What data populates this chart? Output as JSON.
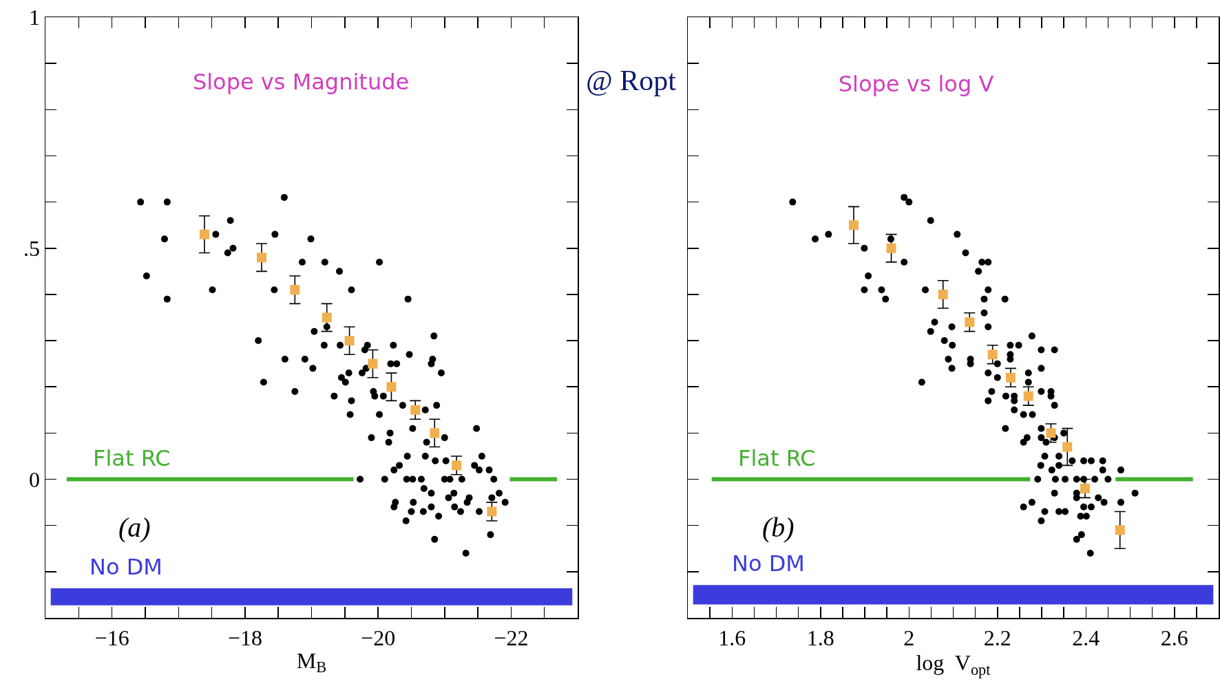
{
  "chart_data": [
    {
      "type": "scatter",
      "title": "Slope vs Magnitude",
      "xlabel": "M$_{B}$",
      "annotations": [
        "(a)",
        "@ Ropt"
      ],
      "xlim": [
        -15,
        -23
      ],
      "xticks": [
        {
          "value": -15.5,
          "label": null
        },
        {
          "value": -16,
          "label": "−16"
        },
        {
          "value": -16.5,
          "label": null
        },
        {
          "value": -17,
          "label": null
        },
        {
          "value": -17.5,
          "label": null
        },
        {
          "value": -18,
          "label": "−18"
        },
        {
          "value": -18.5,
          "label": null
        },
        {
          "value": -19,
          "label": null
        },
        {
          "value": -19.5,
          "label": null
        },
        {
          "value": -20,
          "label": "−20"
        },
        {
          "value": -20.5,
          "label": null
        },
        {
          "value": -21,
          "label": null
        },
        {
          "value": -21.5,
          "label": null
        },
        {
          "value": -22,
          "label": "−22"
        },
        {
          "value": -22.5,
          "label": null
        }
      ],
      "ylim": [
        -0.3,
        1
      ],
      "yticks": [
        {
          "value": -0.2,
          "label": null
        },
        {
          "value": -0.1,
          "label": null
        },
        0,
        {
          "value": 0.1,
          "label": null
        },
        {
          "value": 0.2,
          "label": null
        },
        {
          "value": 0.3,
          "label": null
        },
        {
          "value": 0.4,
          "label": null
        },
        {
          "value": 0.5,
          "label": ".5"
        },
        {
          "value": 0.6,
          "label": null
        },
        {
          "value": 0.7,
          "label": null
        },
        {
          "value": 0.8,
          "label": null
        },
        {
          "value": 0.9,
          "label": null
        },
        1
      ],
      "legend": false,
      "bands": [
        {
          "axis": "y",
          "from": -0.273,
          "to": -0.236,
          "label": "No DM",
          "color": "#3c3cdc"
        }
      ],
      "series": [
        {
          "type": "line",
          "name": "Flat RC",
          "color": "#44b030",
          "marker": "none",
          "x": [
            -15.32,
            -19.63,
            -20.8,
            -21.98,
            -22.69
          ],
          "values": [
            0,
            0,
            null,
            0,
            0
          ]
        },
        {
          "color": "#000000",
          "marker": "circle",
          "x": [
            -16.43,
            -16.83,
            -18.59,
            -17.78,
            -16.79,
            -17.56,
            -18.45,
            -18.99,
            -17.82,
            -17.74,
            -16.52,
            -18.86,
            -19.2,
            -19.42,
            -20.02,
            -17.51,
            -18.44,
            -19.6,
            -16.83,
            -20.45,
            -19.23,
            -19.04,
            -18.2,
            -20.84,
            -19.19,
            -19.43,
            -19.84,
            -19.8,
            -20.23,
            -20.47,
            -18.6,
            -18.9,
            -20.19,
            -20.28,
            -20.82,
            -20.8,
            -19.02,
            -18.28,
            -18.75,
            -19.34,
            -19.6,
            -19.58,
            -19.45,
            -19.51,
            -19.56,
            -19.76,
            -19.82,
            -19.93,
            -19.95,
            -20.08,
            -20.02,
            -19.9,
            -20.18,
            -20.16,
            -20.37,
            -20.52,
            -20.71,
            -20.88,
            -20.95,
            -20.73,
            -21.0,
            -21.48,
            -20.44,
            -20.32,
            -20.24,
            -20.71,
            -20.86,
            -21.02,
            -21.56,
            -21.45,
            -21.52,
            -21.67,
            -19.73,
            -20.1,
            -20.43,
            -20.52,
            -20.65,
            -21.0,
            -21.08,
            -21.26,
            -21.74,
            -20.69,
            -20.8,
            -21.14,
            -21.06,
            -21.37,
            -21.34,
            -21.82,
            -21.91,
            -21.71,
            -20.26,
            -20.24,
            -20.53,
            -20.5,
            -20.68,
            -20.8,
            -20.91,
            -21.15,
            -21.24,
            -21.52,
            -20.42,
            -21.69,
            -20.85,
            -21.32
          ],
          "values": [
            0.6,
            0.6,
            0.61,
            0.56,
            0.52,
            0.53,
            0.53,
            0.52,
            0.5,
            0.49,
            0.44,
            0.47,
            0.47,
            0.45,
            0.47,
            0.41,
            0.41,
            0.41,
            0.39,
            0.39,
            0.33,
            0.32,
            0.3,
            0.31,
            0.29,
            0.29,
            0.29,
            0.28,
            0.29,
            0.27,
            0.26,
            0.26,
            0.25,
            0.25,
            0.26,
            0.25,
            0.24,
            0.21,
            0.19,
            0.18,
            0.17,
            0.14,
            0.22,
            0.21,
            0.23,
            0.23,
            0.24,
            0.19,
            0.18,
            0.18,
            0.14,
            0.09,
            0.1,
            0.08,
            0.16,
            0.11,
            0.15,
            0.16,
            0.23,
            0.08,
            0.09,
            0.11,
            0.05,
            0.03,
            0.02,
            0.05,
            0.04,
            0.04,
            0.05,
            0.03,
            0.02,
            0.02,
            0,
            0,
            0,
            0,
            0,
            0,
            0,
            0,
            0,
            -0.02,
            -0.03,
            -0.03,
            -0.04,
            -0.04,
            -0.05,
            -0.03,
            -0.05,
            -0.04,
            -0.05,
            -0.06,
            -0.05,
            -0.07,
            -0.07,
            -0.06,
            -0.08,
            -0.06,
            -0.07,
            -0.07,
            -0.09,
            -0.12,
            -0.13,
            -0.16
          ]
        },
        {
          "color": "#f0b050",
          "marker": "square",
          "x": [
            -17.39,
            -18.25,
            -18.75,
            -19.23,
            -19.57,
            -19.92,
            -20.2,
            -20.56,
            -20.85,
            -21.18,
            -21.71
          ],
          "values": [
            0.53,
            0.48,
            0.41,
            0.35,
            0.3,
            0.25,
            0.2,
            0.15,
            0.1,
            0.03,
            -0.07
          ],
          "errors": [
            0.04,
            0.03,
            0.03,
            0.03,
            0.03,
            0.03,
            0.03,
            0.02,
            0.03,
            0.02,
            0.02
          ]
        }
      ]
    },
    {
      "type": "scatter",
      "title": "Slope vs log V",
      "xlabel": "log  V$_{opt}$",
      "annotations": [
        "(b)"
      ],
      "xlim": [
        1.5,
        2.7
      ],
      "xticks": [
        {
          "value": 1.55,
          "label": null
        },
        1.6,
        {
          "value": 1.65,
          "label": null
        },
        {
          "value": 1.7,
          "label": null
        },
        {
          "value": 1.75,
          "label": null
        },
        1.8,
        {
          "value": 1.85,
          "label": null
        },
        {
          "value": 1.9,
          "label": null
        },
        {
          "value": 1.95,
          "label": null
        },
        2,
        {
          "value": 2.05,
          "label": null
        },
        {
          "value": 2.1,
          "label": null
        },
        {
          "value": 2.15,
          "label": null
        },
        2.2,
        {
          "value": 2.25,
          "label": null
        },
        {
          "value": 2.3,
          "label": null
        },
        {
          "value": 2.35,
          "label": null
        },
        2.4,
        {
          "value": 2.45,
          "label": null
        },
        {
          "value": 2.5,
          "label": null
        },
        {
          "value": 2.55,
          "label": null
        },
        2.6,
        {
          "value": 2.65,
          "label": null
        }
      ],
      "ylim": [
        -0.3,
        1
      ],
      "yticks": [
        -0.2,
        -0.1,
        0,
        0.1,
        0.2,
        0.3,
        0.4,
        0.5,
        0.6,
        0.7,
        0.8,
        0.9
      ],
      "tick_labels": "x",
      "legend": false,
      "bands": [
        {
          "axis": "y",
          "from": -0.271,
          "to": -0.229,
          "label": "No DM",
          "color": "#3c3cdc"
        }
      ],
      "series": [
        {
          "type": "line",
          "name": "Flat RC",
          "color": "#44b030",
          "marker": "none",
          "x": [
            1.554,
            2.274,
            2.37,
            2.467,
            2.642
          ],
          "values": [
            0,
            0,
            null,
            0,
            0
          ]
        },
        {
          "color": "#000000",
          "marker": "circle",
          "x": [
            1.737,
            1.989,
            2.0,
            2.049,
            1.788,
            1.818,
            1.959,
            1.899,
            2.109,
            1.989,
            2.128,
            2.165,
            2.179,
            2.157,
            1.908,
            1.899,
            1.938,
            1.947,
            2.037,
            2.179,
            2.17,
            2.217,
            2.17,
            2.058,
            2.097,
            2.049,
            2.179,
            2.08,
            2.098,
            2.278,
            2.229,
            2.248,
            2.299,
            2.329,
            2.089,
            2.139,
            2.139,
            2.2,
            2.229,
            2.229,
            2.097,
            2.299,
            2.029,
            2.179,
            2.27,
            2.2,
            2.27,
            2.187,
            2.179,
            2.219,
            2.238,
            2.238,
            2.299,
            2.321,
            2.321,
            2.329,
            2.238,
            2.259,
            2.279,
            2.218,
            2.267,
            2.259,
            2.299,
            2.299,
            2.31,
            2.329,
            2.35,
            2.307,
            2.339,
            2.298,
            2.323,
            2.339,
            2.369,
            2.395,
            2.412,
            2.438,
            2.438,
            2.479,
            2.291,
            2.331,
            2.353,
            2.379,
            2.395,
            2.42,
            2.45,
            2.329,
            2.379,
            2.379,
            2.511,
            2.428,
            2.441,
            2.278,
            2.259,
            2.395,
            2.412,
            2.479,
            2.307,
            2.339,
            2.353,
            2.388,
            2.401,
            2.299,
            2.379,
            2.39,
            2.41
          ],
          "values": [
            0.6,
            0.61,
            0.6,
            0.56,
            0.52,
            0.53,
            0.52,
            0.5,
            0.53,
            0.47,
            0.49,
            0.47,
            0.47,
            0.45,
            0.44,
            0.41,
            0.41,
            0.39,
            0.41,
            0.41,
            0.39,
            0.39,
            0.36,
            0.34,
            0.33,
            0.32,
            0.33,
            0.3,
            0.29,
            0.31,
            0.29,
            0.29,
            0.28,
            0.28,
            0.26,
            0.26,
            0.25,
            0.25,
            0.27,
            0.26,
            0.24,
            0.24,
            0.21,
            0.23,
            0.23,
            0.22,
            0.21,
            0.19,
            0.17,
            0.18,
            0.18,
            0.17,
            0.19,
            0.19,
            0.18,
            0.16,
            0.15,
            0.14,
            0.14,
            0.11,
            0.09,
            0.08,
            0.11,
            0.09,
            0.08,
            0.09,
            0.1,
            0.05,
            0.05,
            0.03,
            0.02,
            0.03,
            0.04,
            0.04,
            0.04,
            0.04,
            0.02,
            0.02,
            0,
            0,
            0,
            0,
            0,
            0,
            0,
            -0.03,
            -0.03,
            -0.04,
            -0.03,
            -0.04,
            -0.05,
            -0.05,
            -0.06,
            -0.06,
            -0.06,
            -0.05,
            -0.07,
            -0.07,
            -0.07,
            -0.08,
            -0.08,
            -0.09,
            -0.13,
            -0.12,
            -0.16
          ]
        },
        {
          "color": "#f0b050",
          "marker": "square",
          "x": [
            1.875,
            1.96,
            2.077,
            2.137,
            2.189,
            2.23,
            2.27,
            2.321,
            2.358,
            2.398,
            2.477
          ],
          "values": [
            0.55,
            0.5,
            0.4,
            0.34,
            0.27,
            0.22,
            0.18,
            0.1,
            0.07,
            -0.02,
            -0.11
          ],
          "errors": [
            0.04,
            0.03,
            0.03,
            0.02,
            0.02,
            0.02,
            0.02,
            0.02,
            0.04,
            0.02,
            0.04
          ]
        }
      ]
    }
  ]
}
